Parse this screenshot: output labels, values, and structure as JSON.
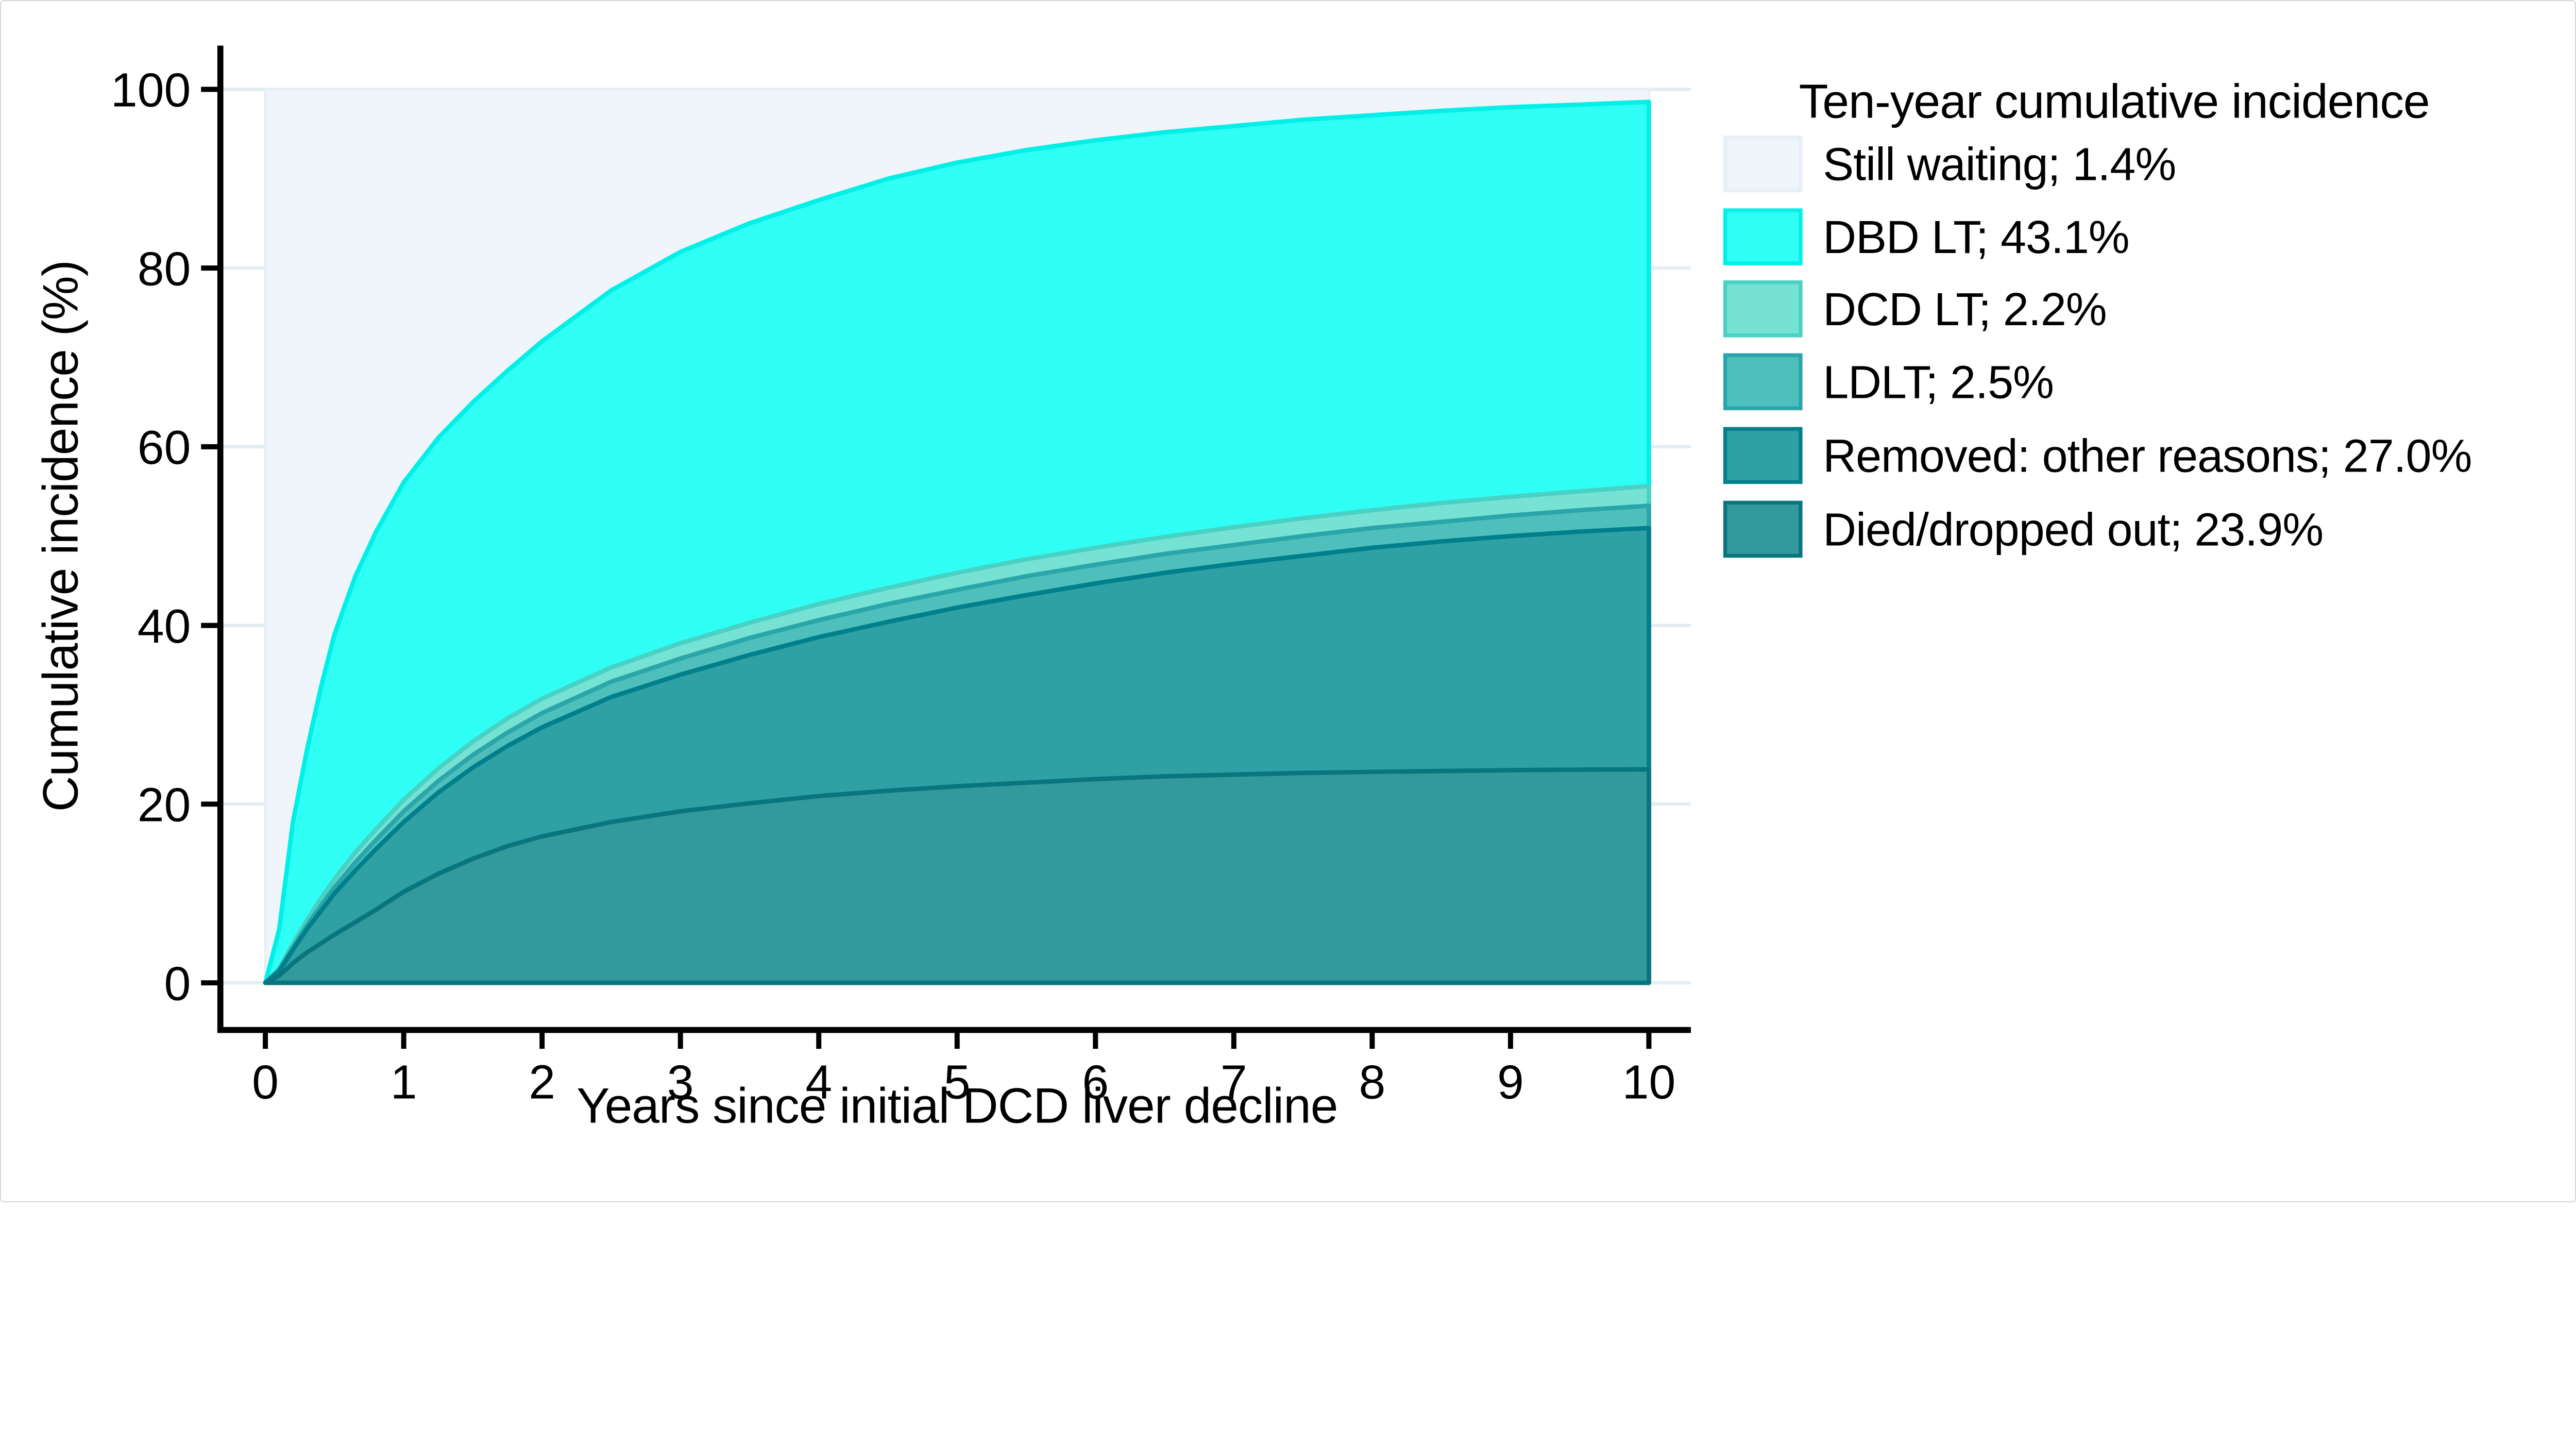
{
  "figure": {
    "background": "#FFFFFF",
    "border_color": "#D6D6D6"
  },
  "axes": {
    "x_title": "Years since initial DCD liver decline",
    "y_title": "Cumulative incidence (%)",
    "x_ticks": [
      0,
      1,
      2,
      3,
      4,
      5,
      6,
      7,
      8,
      9,
      10
    ],
    "y_ticks": [
      0,
      20,
      40,
      60,
      80,
      100
    ],
    "axis_color": "#000000",
    "grid_color": "#E4EDF1"
  },
  "legend": {
    "title": "Ten-year cumulative incidence",
    "title_color": "#243A5E",
    "text_color": "#000000"
  },
  "chart_data": {
    "type": "area",
    "subtype": "stacked-cumulative-incidence",
    "title": "Ten-year cumulative incidence",
    "xlabel": "Years since initial DCD liver decline",
    "ylabel": "Cumulative incidence (%)",
    "xlim": [
      0,
      10
    ],
    "ylim": [
      0,
      100
    ],
    "grid": "horizontal",
    "legend_position": "right",
    "x": [
      0,
      0.1,
      0.2,
      0.3,
      0.4,
      0.5,
      0.65,
      0.8,
      1,
      1.25,
      1.5,
      1.75,
      2,
      2.5,
      3,
      3.5,
      4,
      4.5,
      5,
      5.5,
      6,
      6.5,
      7,
      7.5,
      8,
      8.5,
      9,
      9.5,
      10
    ],
    "series": [
      {
        "name": "Died/dropped out",
        "legend_label": "Died/dropped out; 23.9%",
        "ten_year_pct": 23.9,
        "fill": "#32999D",
        "stroke": "#09757F",
        "boundary": [
          0,
          0.8,
          2.2,
          3.4,
          4.4,
          5.4,
          6.8,
          8.2,
          10.2,
          12.2,
          13.9,
          15.3,
          16.4,
          18,
          19.2,
          20.1,
          20.9,
          21.5,
          22,
          22.4,
          22.8,
          23.1,
          23.3,
          23.5,
          23.6,
          23.7,
          23.8,
          23.85,
          23.9
        ]
      },
      {
        "name": "Removed: other reasons",
        "legend_label": "Removed: other reasons; 27.0%",
        "ten_year_pct": 27.0,
        "fill": "#2FA0A3",
        "stroke": "#00808C",
        "boundary": [
          0,
          1.3,
          3.7,
          6,
          8,
          10,
          12.6,
          15,
          18,
          21.3,
          24.1,
          26.5,
          28.6,
          32,
          34.5,
          36.7,
          38.7,
          40.4,
          42,
          43.4,
          44.7,
          45.9,
          46.9,
          47.8,
          48.7,
          49.4,
          50,
          50.5,
          50.9
        ]
      },
      {
        "name": "LDLT",
        "legend_label": "LDLT; 2.5%",
        "ten_year_pct": 2.5,
        "fill": "#4FBFBC",
        "stroke": "#2AA6AA",
        "boundary": [
          0,
          1.45,
          4,
          6.4,
          8.6,
          10.7,
          13.5,
          16,
          19.2,
          22.6,
          25.5,
          28,
          30.2,
          33.7,
          36.3,
          38.6,
          40.6,
          42.4,
          44,
          45.5,
          46.8,
          48,
          49,
          50,
          50.9,
          51.6,
          52.3,
          52.9,
          53.4
        ]
      },
      {
        "name": "DCD LT",
        "legend_label": "DCD LT; 2.2%",
        "ten_year_pct": 2.2,
        "fill": "#76E2D4",
        "stroke": "#48D1C4",
        "boundary": [
          0,
          1.6,
          4.4,
          7,
          9.4,
          11.6,
          14.6,
          17.2,
          20.5,
          24,
          27,
          29.6,
          31.8,
          35.3,
          38,
          40.3,
          42.4,
          44.2,
          45.9,
          47.4,
          48.7,
          49.9,
          51,
          52,
          52.9,
          53.7,
          54.4,
          55,
          55.6
        ]
      },
      {
        "name": "DBD LT",
        "legend_label": "DBD LT; 43.1%",
        "ten_year_pct": 43.1,
        "fill": "#2FFFF4",
        "stroke": "#00F0E8",
        "boundary": [
          0,
          6,
          18,
          26,
          33,
          39,
          45.5,
          50.5,
          56,
          61,
          65,
          68.5,
          71.8,
          77.5,
          81.8,
          85,
          87.6,
          90,
          91.8,
          93.2,
          94.3,
          95.2,
          95.9,
          96.6,
          97.1,
          97.6,
          98,
          98.3,
          98.6
        ]
      },
      {
        "name": "Still waiting",
        "legend_label": "Still waiting; 1.4%",
        "ten_year_pct": 1.4,
        "fill": "#EFF5FB",
        "stroke": "#E7F0F8",
        "boundary": null
      }
    ]
  }
}
